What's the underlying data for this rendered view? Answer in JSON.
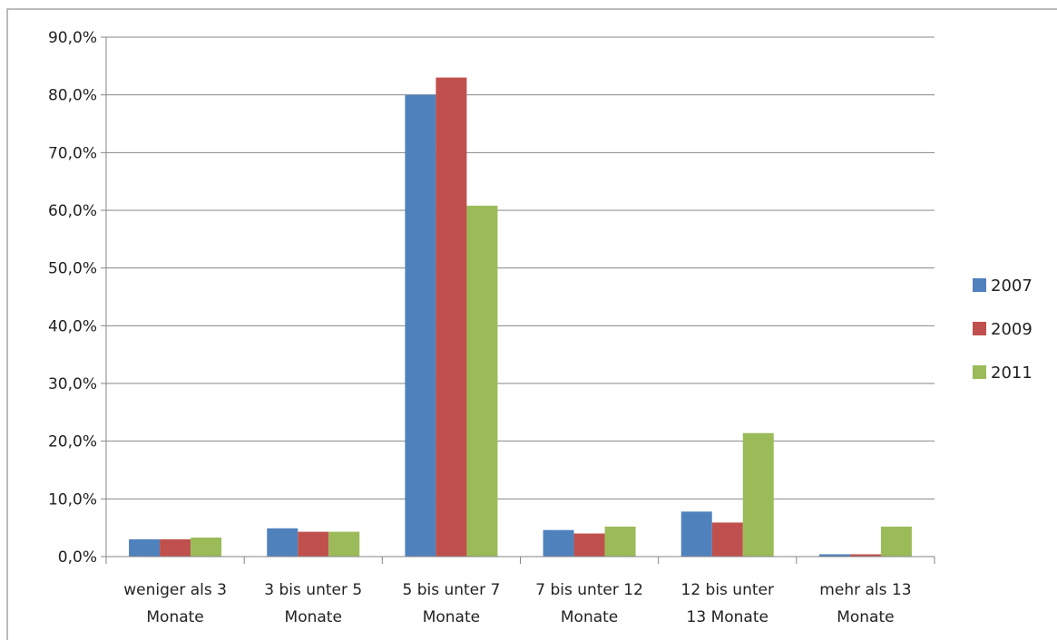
{
  "chart_data": {
    "type": "bar",
    "categories": [
      [
        "weniger als 3",
        "Monate"
      ],
      [
        "3 bis unter 5",
        "Monate"
      ],
      [
        "5 bis unter 7",
        "Monate"
      ],
      [
        "7 bis unter 12",
        "Monate"
      ],
      [
        "12 bis unter",
        "13 Monate"
      ],
      [
        "mehr als 13",
        "Monate"
      ]
    ],
    "series": [
      {
        "name": "2007",
        "color": "#4f81bd",
        "values": [
          3.0,
          4.9,
          80.0,
          4.6,
          7.8,
          0.4
        ]
      },
      {
        "name": "2009",
        "color": "#c0504d",
        "values": [
          3.0,
          4.3,
          83.0,
          4.0,
          5.9,
          0.4
        ]
      },
      {
        "name": "2011",
        "color": "#9bbb59",
        "values": [
          3.3,
          4.3,
          60.8,
          5.2,
          21.4,
          5.2
        ]
      }
    ],
    "ylim": [
      0,
      90
    ],
    "yticks": [
      "0,0%",
      "10,0%",
      "20,0%",
      "30,0%",
      "40,0%",
      "50,0%",
      "60,0%",
      "70,0%",
      "80,0%",
      "90,0%"
    ],
    "grid": true,
    "legend": "right"
  }
}
